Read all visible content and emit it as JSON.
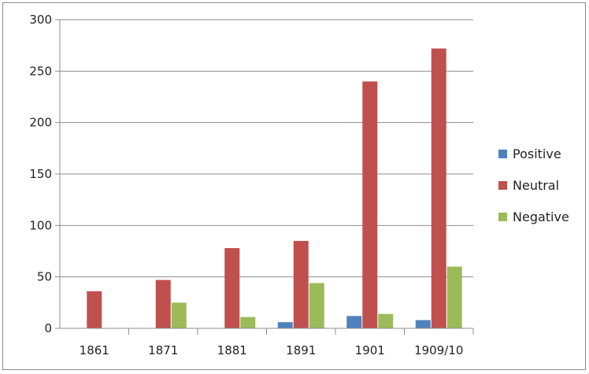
{
  "chart_data": {
    "type": "bar",
    "categories": [
      "1861",
      "1871",
      "1881",
      "1891",
      "1901",
      "1909/10"
    ],
    "series": [
      {
        "name": "Positive",
        "color": "#4f81bd",
        "values": [
          0,
          0,
          0,
          6,
          12,
          8
        ]
      },
      {
        "name": "Neutral",
        "color": "#c0504d",
        "values": [
          36,
          47,
          78,
          85,
          240,
          272
        ]
      },
      {
        "name": "Negative",
        "color": "#9bbb59",
        "values": [
          0,
          25,
          11,
          44,
          14,
          60
        ]
      }
    ],
    "title": "",
    "xlabel": "",
    "ylabel": "",
    "ylim": [
      0,
      300
    ],
    "yticks": [
      "0",
      "50",
      "100",
      "150",
      "200",
      "250",
      "300"
    ],
    "grid": true,
    "legend_position": "right"
  }
}
